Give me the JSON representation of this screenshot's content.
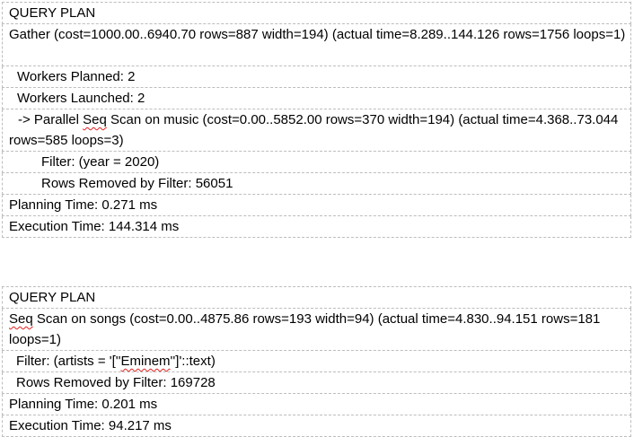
{
  "plan1": {
    "header": "QUERY PLAN",
    "rows": [
      "Gather  (cost=1000.00..6940.70 rows=887 width=194) (actual time=8.289..144.126 rows=1756 loops=1)",
      "Workers Planned: 2",
      "Workers Launched: 2",
      {
        "prefix": "->  Parallel ",
        "flag": "Seq",
        "suffix": " Scan on music  (cost=0.00..5852.00 rows=370 width=194) (actual time=4.368..73.044 rows=585 loops=3)"
      },
      "Filter: (year = 2020)",
      "Rows Removed by Filter: 56051",
      "Planning Time: 0.271 ms",
      "Execution Time: 144.314 ms"
    ]
  },
  "plan2": {
    "header": "QUERY PLAN",
    "rows": [
      {
        "flag": "Seq",
        "suffix": " Scan on songs  (cost=0.00..4875.86 rows=193 width=94) (actual time=4.830..94.151 rows=181 loops=1)"
      },
      {
        "prefix": "Filter: (artists = '[''",
        "flag": "Eminem",
        "suffix": "'']'::text)"
      },
      "Rows Removed by Filter: 169728",
      "Planning Time: 0.201 ms",
      "Execution Time: 94.217 ms"
    ]
  }
}
